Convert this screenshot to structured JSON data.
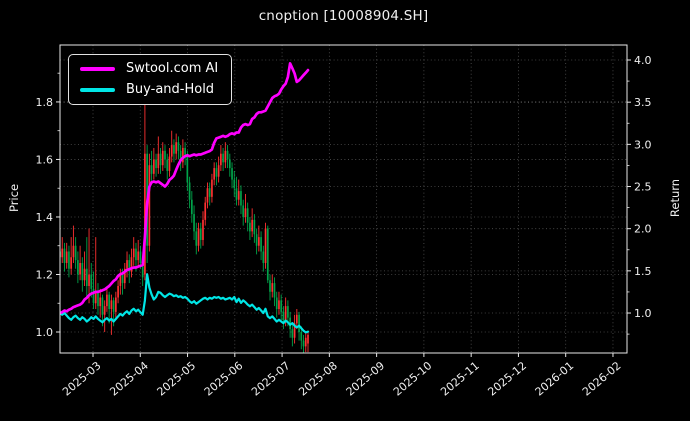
{
  "title": "cnoption [10008904.SH]",
  "legend": {
    "items": [
      {
        "label": "Swtool.com AI",
        "color": "#ff00ff"
      },
      {
        "label": "Buy-and-Hold",
        "color": "#00e6e6"
      }
    ]
  },
  "price_axis": {
    "label": "Price",
    "tick_labels": [
      "1.0",
      "1.2",
      "1.4",
      "1.6",
      "1.8"
    ],
    "ticks": [
      1.0,
      1.2,
      1.4,
      1.6,
      1.8
    ],
    "min": 0.927,
    "max": 1.998
  },
  "return_axis": {
    "label": "Return",
    "tick_labels": [
      "1.0",
      "1.5",
      "2.0",
      "2.5",
      "3.0",
      "3.5",
      "4.0"
    ],
    "ticks": [
      1.0,
      1.5,
      2.0,
      2.5,
      3.0,
      3.5,
      4.0
    ],
    "min": 0.526,
    "max": 4.178
  },
  "x_axis": {
    "tick_labels": [
      "2025-03",
      "2025-04",
      "2025-05",
      "2025-06",
      "2025-07",
      "2025-08",
      "2025-09",
      "2025-10",
      "2025-11",
      "2025-12",
      "2026-01",
      "2026-02"
    ]
  },
  "colors": {
    "background": "#000000",
    "text": "#f0f0f0",
    "grid": "rgba(255,255,255,0.32)",
    "spine": "#e8e8e8",
    "up_candle": "#ff3131",
    "down_candle": "#00a44a",
    "ai_line": "#ff00ff",
    "bh_line": "#00e6e6"
  },
  "chart_data": {
    "type": "candlestick+line",
    "title": "cnoption [10008904.SH]",
    "ylabel_left": "Price",
    "ylabel_right": "Return",
    "x_range_note": "daily data from 2025-02 to 2025-07; x axis extends to 2026-02",
    "price_ylim": [
      0.927,
      1.998
    ],
    "return_ylim": [
      0.526,
      4.178
    ],
    "grid": true,
    "legend_position": "upper-left",
    "candles_ohlc": [
      [
        1.28,
        1.38,
        1.24,
        1.26
      ],
      [
        1.26,
        1.33,
        1.24,
        1.29
      ],
      [
        1.29,
        1.31,
        1.21,
        1.24
      ],
      [
        1.24,
        1.31,
        1.22,
        1.28
      ],
      [
        1.28,
        1.3,
        1.19,
        1.22
      ],
      [
        1.22,
        1.33,
        1.2,
        1.26
      ],
      [
        1.26,
        1.37,
        1.24,
        1.3
      ],
      [
        1.3,
        1.33,
        1.22,
        1.25
      ],
      [
        1.25,
        1.28,
        1.17,
        1.2
      ],
      [
        1.2,
        1.3,
        1.18,
        1.24
      ],
      [
        1.24,
        1.26,
        1.14,
        1.18
      ],
      [
        1.18,
        1.28,
        1.16,
        1.22
      ],
      [
        1.22,
        1.33,
        1.12,
        1.16
      ],
      [
        1.16,
        1.36,
        1.1,
        1.2
      ],
      [
        1.2,
        1.24,
        1.12,
        1.15
      ],
      [
        1.15,
        1.21,
        1.08,
        1.1
      ],
      [
        1.1,
        1.33,
        1.08,
        1.14
      ],
      [
        1.14,
        1.17,
        1.06,
        1.09
      ],
      [
        1.09,
        1.15,
        1.05,
        1.12
      ],
      [
        1.12,
        1.13,
        1.02,
        1.06
      ],
      [
        1.06,
        1.11,
        1.0,
        1.09
      ],
      [
        1.09,
        1.15,
        1.07,
        1.13
      ],
      [
        1.13,
        1.14,
        1.03,
        1.08
      ],
      [
        1.08,
        1.13,
        0.99,
        1.11
      ],
      [
        1.11,
        1.12,
        1.02,
        1.07
      ],
      [
        1.07,
        1.14,
        1.05,
        1.12
      ],
      [
        1.12,
        1.18,
        1.1,
        1.16
      ],
      [
        1.16,
        1.22,
        1.13,
        1.2
      ],
      [
        1.2,
        1.22,
        1.13,
        1.17
      ],
      [
        1.17,
        1.24,
        1.15,
        1.22
      ],
      [
        1.22,
        1.28,
        1.19,
        1.25
      ],
      [
        1.25,
        1.27,
        1.17,
        1.21
      ],
      [
        1.21,
        1.29,
        1.19,
        1.26
      ],
      [
        1.26,
        1.33,
        1.23,
        1.29
      ],
      [
        1.29,
        1.31,
        1.21,
        1.25
      ],
      [
        1.25,
        1.32,
        1.23,
        1.28
      ],
      [
        1.28,
        1.3,
        1.22,
        1.24
      ],
      [
        1.24,
        1.26,
        1.16,
        1.19
      ],
      [
        1.2,
        1.81,
        1.18,
        1.62
      ],
      [
        1.62,
        1.65,
        1.24,
        1.3
      ],
      [
        1.3,
        1.62,
        1.28,
        1.58
      ],
      [
        1.58,
        1.63,
        1.52,
        1.55
      ],
      [
        1.55,
        1.64,
        1.53,
        1.6
      ],
      [
        1.6,
        1.62,
        1.54,
        1.57
      ],
      [
        1.57,
        1.68,
        1.55,
        1.62
      ],
      [
        1.62,
        1.64,
        1.55,
        1.58
      ],
      [
        1.58,
        1.66,
        1.56,
        1.63
      ],
      [
        1.63,
        1.65,
        1.57,
        1.6
      ],
      [
        1.6,
        1.62,
        1.53,
        1.56
      ],
      [
        1.56,
        1.64,
        1.54,
        1.61
      ],
      [
        1.61,
        1.7,
        1.59,
        1.65
      ],
      [
        1.65,
        1.67,
        1.59,
        1.62
      ],
      [
        1.62,
        1.69,
        1.6,
        1.66
      ],
      [
        1.66,
        1.68,
        1.6,
        1.63
      ],
      [
        1.63,
        1.65,
        1.56,
        1.59
      ],
      [
        1.59,
        1.67,
        1.57,
        1.64
      ],
      [
        1.64,
        1.66,
        1.58,
        1.61
      ],
      [
        1.61,
        1.63,
        1.49,
        1.52
      ],
      [
        1.52,
        1.54,
        1.43,
        1.46
      ],
      [
        1.46,
        1.49,
        1.38,
        1.41
      ],
      [
        1.41,
        1.44,
        1.32,
        1.35
      ],
      [
        1.35,
        1.38,
        1.27,
        1.3
      ],
      [
        1.3,
        1.38,
        1.28,
        1.36
      ],
      [
        1.36,
        1.38,
        1.29,
        1.32
      ],
      [
        1.32,
        1.42,
        1.3,
        1.39
      ],
      [
        1.39,
        1.47,
        1.37,
        1.45
      ],
      [
        1.45,
        1.52,
        1.43,
        1.5
      ],
      [
        1.5,
        1.52,
        1.44,
        1.47
      ],
      [
        1.47,
        1.55,
        1.45,
        1.53
      ],
      [
        1.53,
        1.59,
        1.51,
        1.57
      ],
      [
        1.57,
        1.59,
        1.51,
        1.54
      ],
      [
        1.54,
        1.61,
        1.52,
        1.58
      ],
      [
        1.58,
        1.65,
        1.56,
        1.62
      ],
      [
        1.62,
        1.64,
        1.56,
        1.59
      ],
      [
        1.59,
        1.66,
        1.57,
        1.63
      ],
      [
        1.63,
        1.65,
        1.57,
        1.6
      ],
      [
        1.6,
        1.62,
        1.54,
        1.57
      ],
      [
        1.57,
        1.59,
        1.5,
        1.53
      ],
      [
        1.53,
        1.56,
        1.47,
        1.5
      ],
      [
        1.5,
        1.54,
        1.44,
        1.46
      ],
      [
        1.46,
        1.53,
        1.44,
        1.49
      ],
      [
        1.49,
        1.51,
        1.41,
        1.44
      ],
      [
        1.44,
        1.46,
        1.37,
        1.4
      ],
      [
        1.4,
        1.48,
        1.38,
        1.43
      ],
      [
        1.43,
        1.45,
        1.35,
        1.38
      ],
      [
        1.38,
        1.4,
        1.32,
        1.35
      ],
      [
        1.35,
        1.43,
        1.33,
        1.39
      ],
      [
        1.39,
        1.41,
        1.31,
        1.34
      ],
      [
        1.34,
        1.36,
        1.27,
        1.3
      ],
      [
        1.3,
        1.37,
        1.28,
        1.33
      ],
      [
        1.33,
        1.35,
        1.25,
        1.28
      ],
      [
        1.28,
        1.3,
        1.21,
        1.24
      ],
      [
        1.24,
        1.38,
        1.22,
        1.36
      ],
      [
        1.36,
        1.37,
        1.17,
        1.18
      ],
      [
        1.18,
        1.2,
        1.11,
        1.14
      ],
      [
        1.14,
        1.2,
        1.12,
        1.17
      ],
      [
        1.17,
        1.19,
        1.09,
        1.12
      ],
      [
        1.12,
        1.14,
        1.05,
        1.08
      ],
      [
        1.08,
        1.14,
        1.06,
        1.11
      ],
      [
        1.11,
        1.13,
        1.04,
        1.07
      ],
      [
        1.07,
        1.09,
        1.01,
        1.04
      ],
      [
        1.04,
        1.12,
        1.02,
        1.09
      ],
      [
        1.09,
        1.11,
        1.02,
        1.05
      ],
      [
        1.05,
        1.07,
        0.98,
        1.01
      ],
      [
        1.01,
        1.03,
        0.95,
        0.98
      ],
      [
        0.98,
        1.06,
        0.96,
        1.03
      ],
      [
        1.03,
        1.08,
        1.01,
        1.06
      ],
      [
        1.06,
        1.07,
        0.97,
        1.0
      ],
      [
        1.0,
        1.02,
        0.94,
        0.97
      ],
      [
        0.97,
        0.99,
        0.92,
        0.95
      ],
      [
        0.95,
        1.0,
        0.93,
        0.98
      ],
      [
        0.96,
        1.0,
        0.93,
        0.99
      ]
    ],
    "series": [
      {
        "name": "Swtool.com AI",
        "color": "#ff00ff",
        "axis": "return",
        "values": [
          1.0,
          1.01,
          1.03,
          1.02,
          1.04,
          1.05,
          1.07,
          1.08,
          1.09,
          1.1,
          1.12,
          1.16,
          1.18,
          1.21,
          1.23,
          1.24,
          1.25,
          1.25,
          1.26,
          1.27,
          1.28,
          1.3,
          1.32,
          1.35,
          1.38,
          1.4,
          1.44,
          1.46,
          1.47,
          1.49,
          1.51,
          1.52,
          1.53,
          1.54,
          1.54,
          1.55,
          1.56,
          1.57,
          1.9,
          2.3,
          2.5,
          2.55,
          2.56,
          2.55,
          2.56,
          2.54,
          2.52,
          2.5,
          2.53,
          2.58,
          2.6,
          2.63,
          2.7,
          2.76,
          2.81,
          2.84,
          2.86,
          2.87,
          2.86,
          2.87,
          2.88,
          2.87,
          2.88,
          2.88,
          2.89,
          2.9,
          2.91,
          2.92,
          2.94,
          3.02,
          3.07,
          3.08,
          3.09,
          3.1,
          3.09,
          3.1,
          3.12,
          3.13,
          3.12,
          3.14,
          3.14,
          3.2,
          3.23,
          3.24,
          3.23,
          3.24,
          3.3,
          3.32,
          3.36,
          3.38,
          3.38,
          3.39,
          3.4,
          3.45,
          3.5,
          3.55,
          3.57,
          3.58,
          3.6,
          3.65,
          3.69,
          3.72,
          3.8,
          3.96,
          3.9,
          3.84,
          3.74,
          3.76,
          3.79,
          3.82,
          3.85,
          3.88
        ]
      },
      {
        "name": "Buy-and-Hold",
        "color": "#00e6e6",
        "axis": "return",
        "values": [
          1.0,
          0.98,
          1.0,
          0.97,
          0.94,
          0.92,
          0.95,
          0.97,
          0.94,
          0.92,
          0.95,
          0.93,
          0.9,
          0.92,
          0.95,
          0.93,
          0.96,
          0.93,
          0.91,
          0.89,
          0.92,
          0.94,
          0.91,
          0.93,
          0.9,
          0.93,
          0.96,
          0.99,
          0.97,
          1.0,
          1.02,
          0.99,
          1.03,
          1.05,
          1.02,
          1.04,
          1.01,
          0.98,
          1.15,
          1.46,
          1.3,
          1.22,
          1.16,
          1.19,
          1.25,
          1.24,
          1.21,
          1.19,
          1.21,
          1.23,
          1.22,
          1.2,
          1.21,
          1.19,
          1.2,
          1.18,
          1.19,
          1.17,
          1.14,
          1.12,
          1.14,
          1.11,
          1.13,
          1.15,
          1.17,
          1.18,
          1.16,
          1.18,
          1.17,
          1.19,
          1.18,
          1.19,
          1.17,
          1.18,
          1.16,
          1.17,
          1.18,
          1.16,
          1.19,
          1.13,
          1.17,
          1.12,
          1.15,
          1.13,
          1.1,
          1.08,
          1.1,
          1.07,
          1.04,
          1.06,
          1.03,
          1.0,
          1.05,
          0.96,
          0.94,
          0.96,
          0.93,
          0.9,
          0.92,
          0.9,
          0.88,
          0.91,
          0.89,
          0.86,
          0.88,
          0.85,
          0.83,
          0.85,
          0.82,
          0.79,
          0.77,
          0.78
        ]
      }
    ]
  }
}
